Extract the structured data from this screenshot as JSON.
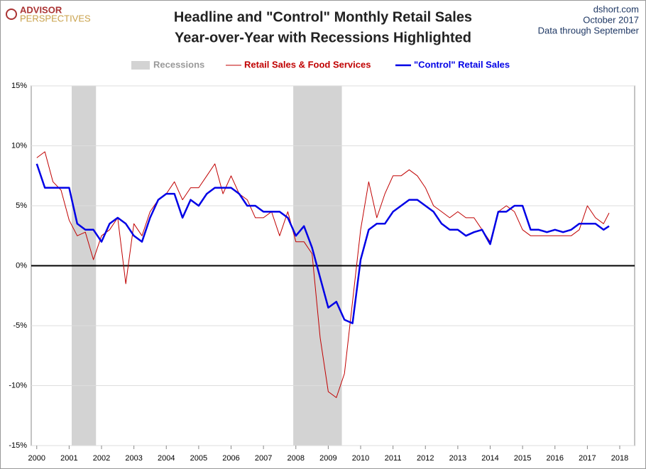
{
  "chart_data": {
    "type": "line",
    "title": "Headline and \"Control\" Monthly Retail Sales",
    "subtitle": "Year-over-Year with Recessions Highlighted",
    "logo": [
      "ADVISOR",
      "PERSPECTIVES"
    ],
    "source": "dshort.com",
    "date": "October 2017",
    "note": "Data through  September",
    "recession_label": "Recessions",
    "recession_color": "#d3d3d3",
    "recessions": [
      [
        2001.08,
        2001.83
      ],
      [
        2007.92,
        2009.42
      ]
    ],
    "x": [
      2000,
      2000.25,
      2000.5,
      2000.75,
      2001,
      2001.25,
      2001.5,
      2001.75,
      2002,
      2002.25,
      2002.5,
      2002.75,
      2003,
      2003.25,
      2003.5,
      2003.75,
      2004,
      2004.25,
      2004.5,
      2004.75,
      2005,
      2005.25,
      2005.5,
      2005.75,
      2006,
      2006.25,
      2006.5,
      2006.75,
      2007,
      2007.25,
      2007.5,
      2007.75,
      2008,
      2008.25,
      2008.5,
      2008.75,
      2009,
      2009.25,
      2009.5,
      2009.75,
      2010,
      2010.25,
      2010.5,
      2010.75,
      2011,
      2011.25,
      2011.5,
      2011.75,
      2012,
      2012.25,
      2012.5,
      2012.75,
      2013,
      2013.25,
      2013.5,
      2013.75,
      2014,
      2014.25,
      2014.5,
      2014.75,
      2015,
      2015.25,
      2015.5,
      2015.75,
      2016,
      2016.25,
      2016.5,
      2016.75,
      2017,
      2017.25,
      2017.5,
      2017.67
    ],
    "series": [
      {
        "name": "Retail Sales & Food Services",
        "color": "#c00000",
        "width": 1,
        "values": [
          9.0,
          9.5,
          7.0,
          6.3,
          3.8,
          2.5,
          2.8,
          0.5,
          2.5,
          3.0,
          4.0,
          -1.5,
          3.5,
          2.5,
          4.5,
          5.5,
          6.0,
          7.0,
          5.5,
          6.5,
          6.5,
          7.5,
          8.5,
          6.0,
          7.5,
          6.0,
          5.5,
          4.0,
          4.0,
          4.5,
          2.5,
          4.5,
          2.0,
          2.0,
          1.0,
          -6.0,
          -10.5,
          -11.0,
          -9.0,
          -3.0,
          3.0,
          7.0,
          4.0,
          6.0,
          7.5,
          7.5,
          8.0,
          7.5,
          6.5,
          5.0,
          4.5,
          4.0,
          4.5,
          4.0,
          4.0,
          3.0,
          2.0,
          4.5,
          5.0,
          4.5,
          3.0,
          2.5,
          2.5,
          2.5,
          2.5,
          2.5,
          2.5,
          3.0,
          5.0,
          4.0,
          3.5,
          4.4
        ]
      },
      {
        "name": "\"Control\" Retail Sales",
        "color": "#0000e6",
        "width": 2.5,
        "values": [
          8.5,
          6.5,
          6.5,
          6.5,
          6.5,
          3.5,
          3.0,
          3.0,
          2.0,
          3.5,
          4.0,
          3.5,
          2.5,
          2.0,
          4.0,
          5.5,
          6.0,
          6.0,
          4.0,
          5.5,
          5.0,
          6.0,
          6.5,
          6.5,
          6.5,
          6.0,
          5.0,
          5.0,
          4.5,
          4.5,
          4.5,
          4.0,
          2.5,
          3.3,
          1.5,
          -1.0,
          -3.5,
          -3.0,
          -4.5,
          -4.8,
          0.5,
          3.0,
          3.5,
          3.5,
          4.5,
          5.0,
          5.5,
          5.5,
          5.0,
          4.5,
          3.5,
          3.0,
          3.0,
          2.5,
          2.8,
          3.0,
          1.8,
          4.5,
          4.5,
          5.0,
          5.0,
          3.0,
          3.0,
          2.8,
          3.0,
          2.8,
          3.0,
          3.5,
          3.5,
          3.5,
          3.0,
          3.3
        ]
      }
    ],
    "xlim": [
      1999.83,
      2018.46
    ],
    "xticks": [
      2000,
      2001,
      2002,
      2003,
      2004,
      2005,
      2006,
      2007,
      2008,
      2009,
      2010,
      2011,
      2012,
      2013,
      2014,
      2015,
      2016,
      2017,
      2018
    ],
    "ylim": [
      -15,
      15
    ],
    "yticks": [
      {
        "value": -15,
        "label": "-15%"
      },
      {
        "value": -10,
        "label": "-10%"
      },
      {
        "value": -5,
        "label": "-5%"
      },
      {
        "value": 0,
        "label": "0%"
      },
      {
        "value": 5,
        "label": "5%"
      },
      {
        "value": 10,
        "label": "10%"
      },
      {
        "value": 15,
        "label": "15%"
      }
    ],
    "grid": true
  }
}
